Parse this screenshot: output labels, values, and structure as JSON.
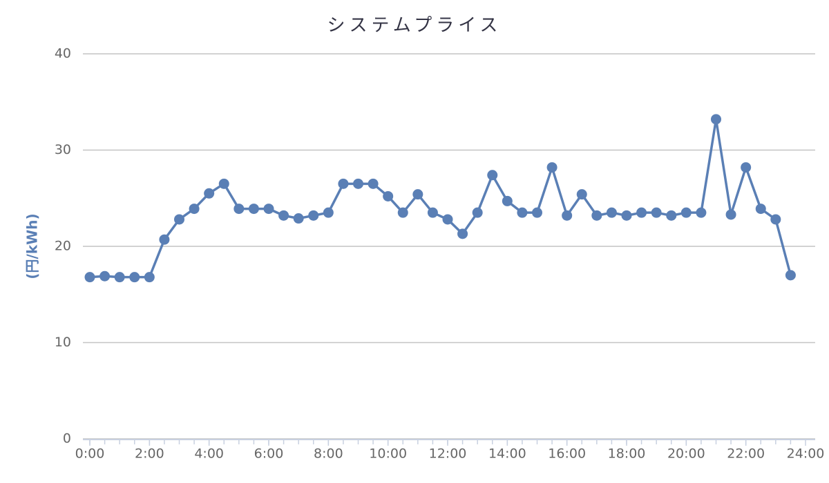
{
  "chart_data": {
    "type": "line",
    "title": "システムプライス",
    "y_label": "(円/kWh)",
    "x": [
      0,
      0.5,
      1,
      1.5,
      2,
      2.5,
      3,
      3.5,
      4,
      4.5,
      5,
      5.5,
      6,
      6.5,
      7,
      7.5,
      8,
      8.5,
      9,
      9.5,
      10,
      10.5,
      11,
      11.5,
      12,
      12.5,
      13,
      13.5,
      14,
      14.5,
      15,
      15.5,
      16,
      16.5,
      17,
      17.5,
      18,
      18.5,
      19,
      19.5,
      20,
      20.5,
      21,
      21.5,
      22,
      22.5,
      23,
      23.5
    ],
    "series": [
      {
        "name": "システムプライス",
        "color": "#5a7fb5",
        "values": [
          16.8,
          16.9,
          16.8,
          16.8,
          16.8,
          20.7,
          22.8,
          23.9,
          25.5,
          26.5,
          23.9,
          23.9,
          23.9,
          23.2,
          22.9,
          23.2,
          23.5,
          26.5,
          26.5,
          26.5,
          25.2,
          23.5,
          25.4,
          23.5,
          22.8,
          21.3,
          23.5,
          27.4,
          24.7,
          23.5,
          23.5,
          28.2,
          23.2,
          25.4,
          23.2,
          23.5,
          23.2,
          23.5,
          23.5,
          23.2,
          23.5,
          23.5,
          33.2,
          23.3,
          28.2,
          23.9,
          22.8,
          17.0
        ]
      }
    ],
    "xlim": [
      0,
      24
    ],
    "xticks": [
      {
        "value": 0,
        "label": "0:00"
      },
      {
        "value": 2,
        "label": "2:00"
      },
      {
        "value": 4,
        "label": "4:00"
      },
      {
        "value": 6,
        "label": "6:00"
      },
      {
        "value": 8,
        "label": "8:00"
      },
      {
        "value": 10,
        "label": "10:00"
      },
      {
        "value": 12,
        "label": "12:00"
      },
      {
        "value": 14,
        "label": "14:00"
      },
      {
        "value": 16,
        "label": "16:00"
      },
      {
        "value": 18,
        "label": "18:00"
      },
      {
        "value": 20,
        "label": "20:00"
      },
      {
        "value": 22,
        "label": "22:00"
      },
      {
        "value": 24,
        "label": "24:00"
      }
    ],
    "ylim": [
      0,
      40
    ],
    "yticks": [
      0,
      10,
      20,
      30,
      40
    ],
    "grid": true
  }
}
